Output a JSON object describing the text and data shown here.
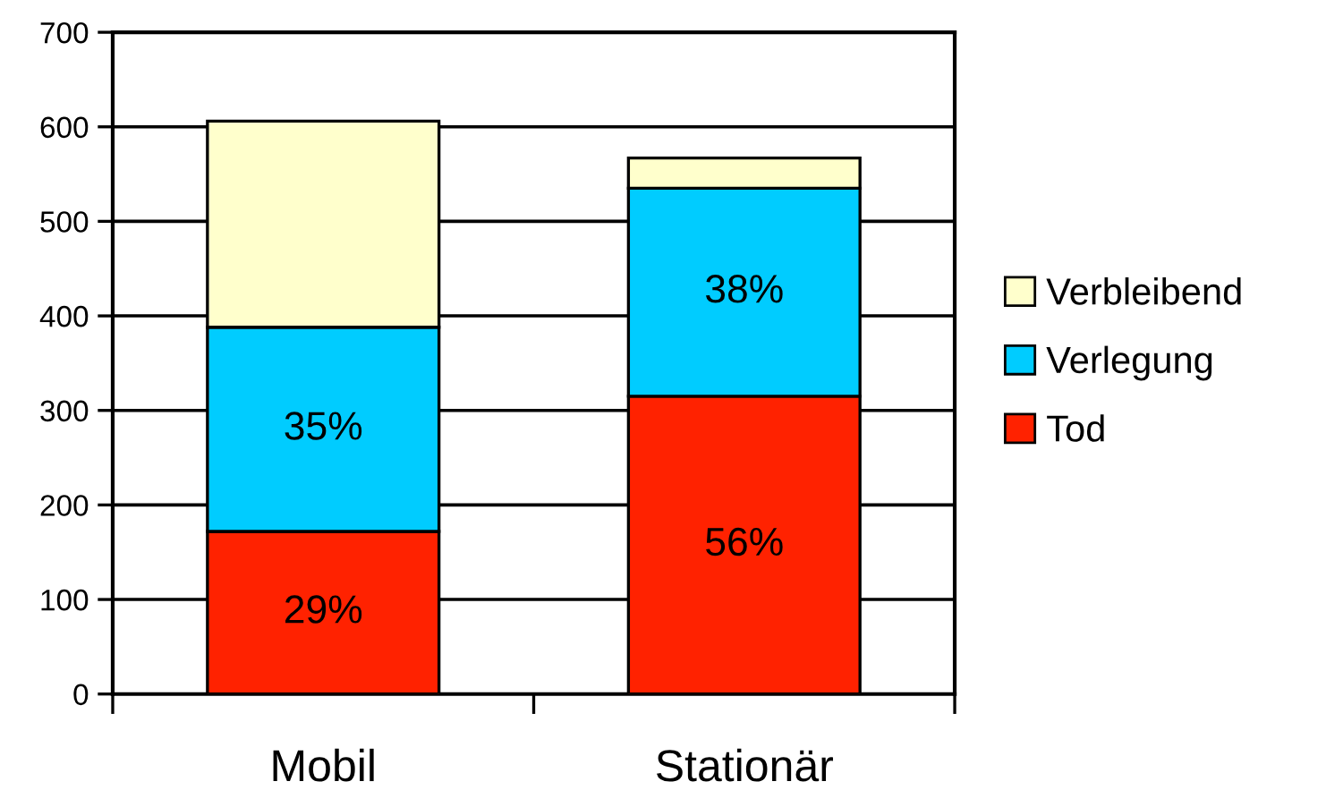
{
  "chart_data": {
    "type": "bar",
    "stacked": true,
    "categories": [
      "Mobil",
      "Stationär"
    ],
    "series": [
      {
        "name": "Tod",
        "color": "#ff2200",
        "values": [
          172,
          315
        ]
      },
      {
        "name": "Verlegung",
        "color": "#00ccff",
        "values": [
          216,
          220
        ]
      },
      {
        "name": "Verbleibend",
        "color": "#ffffcc",
        "values": [
          218,
          32
        ]
      }
    ],
    "annotations": [
      "29%",
      "35%",
      "56%",
      "38%"
    ],
    "ylim": [
      0,
      700
    ],
    "yticks": [
      0,
      100,
      200,
      300,
      400,
      500,
      600,
      700
    ],
    "grid": "y",
    "legend": "right"
  }
}
